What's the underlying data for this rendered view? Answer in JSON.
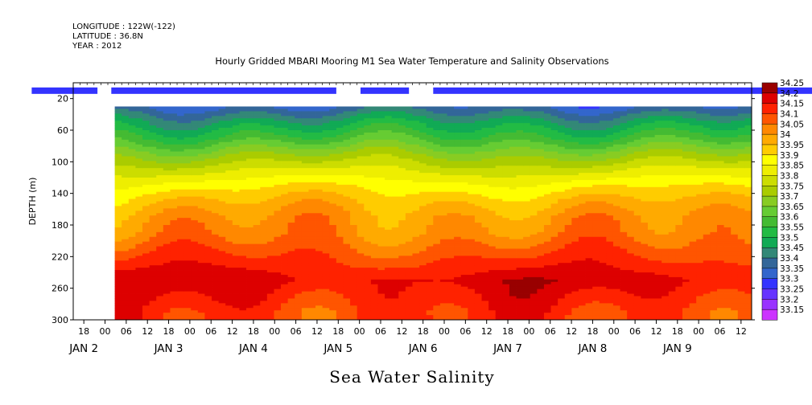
{
  "header": {
    "longitude": "LONGITUDE : 122W(-122)",
    "latitude": "LATITUDE : 36.8N",
    "year": "YEAR : 2012"
  },
  "plot_title": "Hourly Gridded MBARI Mooring M1 Sea Water Temperature and Salinity Observations",
  "bottom_title": "Sea Water Salinity",
  "chart_data": {
    "type": "heatmap",
    "title": "Hourly Gridded MBARI Mooring M1 Sea Water Temperature and Salinity Observations",
    "variable": "Sea Water Salinity",
    "ylabel": "DEPTH (m)",
    "ylim": [
      300,
      0
    ],
    "y_reversed": true,
    "y_ticks": [
      20,
      60,
      100,
      140,
      180,
      220,
      260,
      300
    ],
    "x_range_hours": [
      "2012-01-01T12:00",
      "2012-01-09T16:00"
    ],
    "x_tick_labels": [
      "18",
      "00",
      "06",
      "12",
      "18",
      "00",
      "06",
      "12",
      "18",
      "00",
      "06",
      "12",
      "18",
      "00",
      "06",
      "12",
      "18",
      "00",
      "06",
      "12",
      "18",
      "00",
      "06",
      "12",
      "18",
      "00",
      "06",
      "12",
      "18",
      "00",
      "06",
      "12"
    ],
    "x_day_labels": [
      {
        "label": "JAN  2",
        "date": "2012-01-02"
      },
      {
        "label": "JAN  3",
        "date": "2012-01-03"
      },
      {
        "label": "JAN  4",
        "date": "2012-01-04"
      },
      {
        "label": "JAN  5",
        "date": "2012-01-05"
      },
      {
        "label": "JAN  6",
        "date": "2012-01-06"
      },
      {
        "label": "JAN  7",
        "date": "2012-01-07"
      },
      {
        "label": "JAN  8",
        "date": "2012-01-08"
      },
      {
        "label": "JAN  9",
        "date": "2012-01-09"
      }
    ],
    "data_start": "2012-01-02T00:00",
    "data_top_depth": 30,
    "levels": [
      33.15,
      33.2,
      33.25,
      33.3,
      33.35,
      33.4,
      33.45,
      33.5,
      33.55,
      33.6,
      33.65,
      33.7,
      33.75,
      33.8,
      33.85,
      33.9,
      33.95,
      34,
      34.05,
      34.1,
      34.15,
      34.2,
      34.25
    ],
    "level_labels": [
      "34.25",
      "34.2",
      "34.15",
      "34.1",
      "34.05",
      "34",
      "33.95",
      "33.9",
      "33.85",
      "33.8",
      "33.75",
      "33.7",
      "33.65",
      "33.6",
      "33.55",
      "33.5",
      "33.45",
      "33.4",
      "33.35",
      "33.3",
      "33.25",
      "33.2",
      "33.15"
    ],
    "colors": [
      "#cc33ff",
      "#9933ff",
      "#6633ff",
      "#3333ff",
      "#3366cc",
      "#336699",
      "#338877",
      "#11aa55",
      "#22bb44",
      "#44bb33",
      "#66cc33",
      "#88cc22",
      "#aacc00",
      "#ccdd00",
      "#eeee00",
      "#ffff00",
      "#ffcc00",
      "#ffaa00",
      "#ff8800",
      "#ff5500",
      "#ff2200",
      "#dd0000",
      "#990000"
    ],
    "surface_strip": {
      "depth": 10,
      "value": 33.3,
      "segments_hours": [
        [
          -24,
          -5
        ],
        [
          -1,
          64
        ],
        [
          71,
          85
        ],
        [
          92,
          207
        ],
        [
          219,
          230
        ],
        [
          237,
          308
        ],
        [
          313,
          316
        ],
        [
          326,
          340
        ]
      ]
    },
    "profile_depths": [
      30,
      50,
      70,
      90,
      110,
      130,
      150,
      170,
      190,
      210,
      230,
      250,
      270,
      290
    ],
    "mean_profile": [
      33.4,
      33.52,
      33.62,
      33.74,
      33.84,
      33.93,
      34.0,
      34.05,
      34.07,
      34.12,
      34.17,
      34.22,
      34.19,
      34.16
    ]
  }
}
